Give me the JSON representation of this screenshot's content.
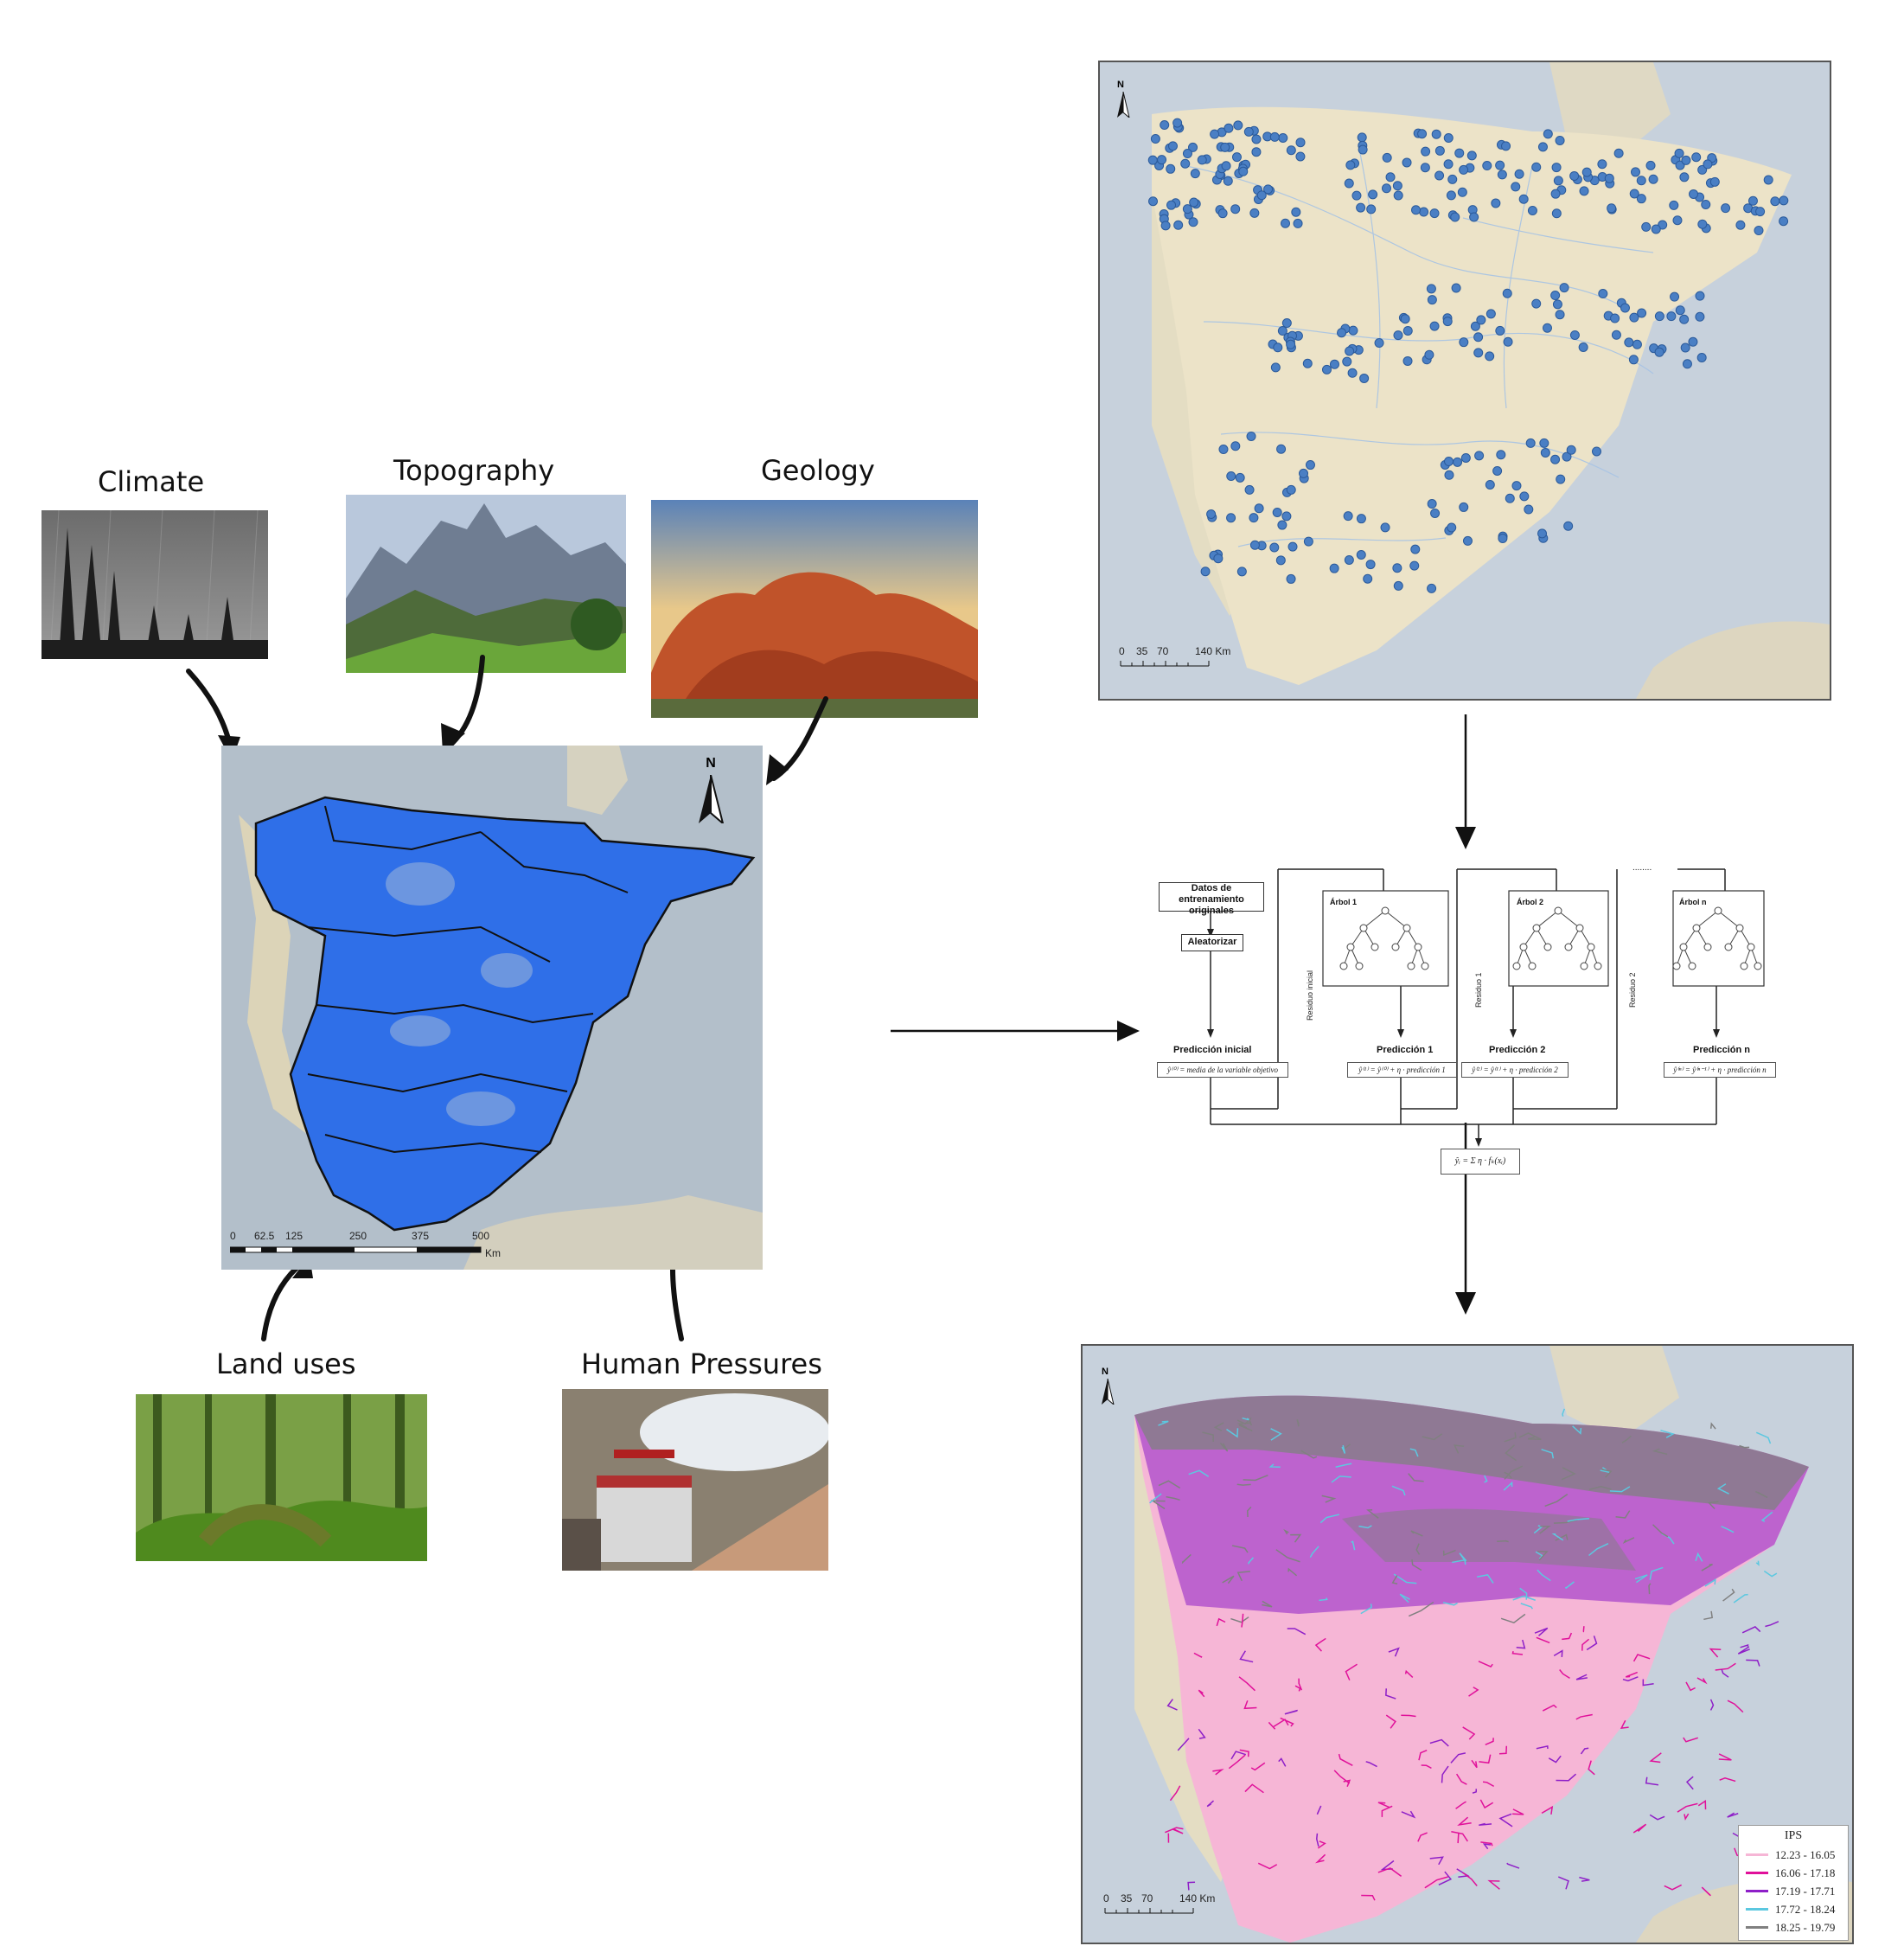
{
  "inputs": {
    "climate": "Climate",
    "topography": "Topography",
    "geology": "Geology",
    "land_uses": "Land uses",
    "human_pressures": "Human Pressures"
  },
  "study_map": {
    "north": "N",
    "scale_ticks": [
      "0",
      "62.5",
      "125",
      "250",
      "375",
      "500"
    ],
    "scale_unit": "Km",
    "fill_color": "#2f6fe8"
  },
  "sites_map": {
    "north": "N",
    "scale_ticks": [
      "0",
      "35",
      "70",
      "140 Km"
    ],
    "point_color": "#4a7fc4"
  },
  "boosting": {
    "original_data": "Datos de entrenamiento originales",
    "randomize": "Aleatorizar",
    "initial_prediction": "Predicción inicial",
    "initial_formula": "ŷ⁽⁰⁾ = media de la variable objetivo",
    "tree1": "Árbol 1",
    "tree2": "Árbol 2",
    "treen": "Árbol n",
    "residual_initial": "Residuo inicial",
    "residual1": "Residuo 1",
    "residual2": "Residuo 2",
    "pred1": "Predicción 1",
    "pred2": "Predicción 2",
    "predn": "Predicción n",
    "formula1": "ŷ⁽¹⁾ = ŷ⁽⁰⁾ + η · predicción 1",
    "formula2": "ŷ⁽²⁾ = ŷ⁽¹⁾ + η · predicción 2",
    "formulan": "ŷ⁽ⁿ⁾ = ŷ⁽ⁿ⁻¹⁾ + η · predicción n",
    "ellipsis": "........",
    "final_formula": "ŷᵢ = Σ η · fₖ(xᵢ)"
  },
  "ips_map": {
    "north": "N",
    "scale_ticks": [
      "0",
      "35",
      "70",
      "140 Km"
    ],
    "legend_title": "IPS",
    "legend": [
      {
        "range": "12.23 - 16.05",
        "color": "#f6b6d6"
      },
      {
        "range": "16.06 - 17.18",
        "color": "#e0119a"
      },
      {
        "range": "17.19 - 17.71",
        "color": "#8e1fc8"
      },
      {
        "range": "17.72 - 18.24",
        "color": "#5cc8e0"
      },
      {
        "range": "18.25 - 19.79",
        "color": "#808080"
      }
    ]
  }
}
